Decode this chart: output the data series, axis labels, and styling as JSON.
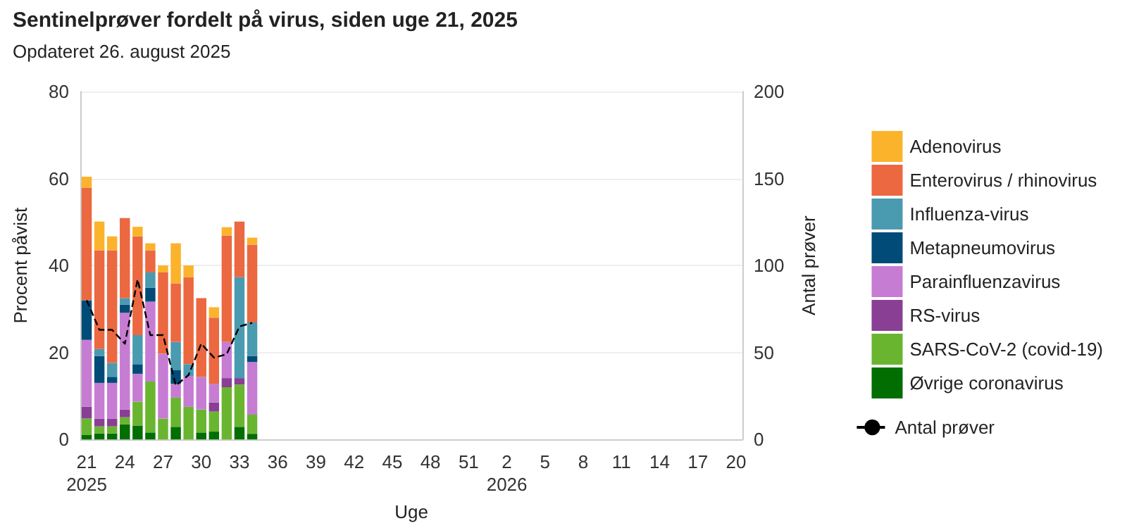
{
  "chart_data": {
    "type": "bar",
    "title": "Sentinelprøver fordelt på virus, siden uge 21, 2025",
    "subtitle": "Opdateret 26. august 2025",
    "xlabel": "Uge",
    "ylabel": "Procent påvist",
    "y2label": "Antal prøver",
    "categories": [
      "21\n2025",
      null,
      null,
      "24",
      null,
      null,
      "27",
      null,
      null,
      "30",
      null,
      null,
      "33",
      null,
      null,
      "36",
      null,
      null,
      "39",
      null,
      null,
      "42",
      null,
      null,
      "45",
      null,
      null,
      "48",
      null,
      null,
      "51",
      null,
      null,
      "2\n2026",
      null,
      null,
      "5",
      null,
      null,
      "8",
      null,
      null,
      "11",
      null,
      null,
      "14",
      null,
      null,
      "17",
      null,
      null,
      "20"
    ],
    "stacked": true,
    "ylim": [
      0,
      80
    ],
    "yticks": [
      0,
      20,
      40,
      60,
      80
    ],
    "y2lim": [
      0,
      200
    ],
    "y2ticks": [
      0,
      50,
      100,
      150,
      200
    ],
    "grid": "y",
    "legend": "right",
    "series": [
      {
        "name": "Øvrige coronavirus",
        "color": "#006e00",
        "values": [
          1.0,
          1.4,
          1.4,
          3.5,
          3.2,
          1.6,
          null,
          2.9,
          null,
          1.6,
          1.8,
          null,
          2.9,
          1.3,
          null,
          null,
          null,
          null,
          null,
          null,
          null,
          null,
          null,
          null,
          null,
          null,
          null,
          null,
          null,
          null,
          null,
          null,
          null,
          null,
          null,
          null,
          null,
          null,
          null,
          null,
          null,
          null,
          null,
          null,
          null,
          null,
          null,
          null,
          null,
          null,
          null,
          null
        ]
      },
      {
        "name": "SARS-CoV-2 (covid-19)",
        "color": "#6ab530",
        "values": [
          3.8,
          1.6,
          1.6,
          1.6,
          5.5,
          11.7,
          4.8,
          6.7,
          7.5,
          5.3,
          4.6,
          12.0,
          9.7,
          4.4,
          null,
          null,
          null,
          null,
          null,
          null,
          null,
          null,
          null,
          null,
          null,
          null,
          null,
          null,
          null,
          null,
          null,
          null,
          null,
          null,
          null,
          null,
          null,
          null,
          null,
          null,
          null,
          null,
          null,
          null,
          null,
          null,
          null,
          null,
          null,
          null,
          null,
          null
        ]
      },
      {
        "name": "RS-virus",
        "color": "#883f94",
        "values": [
          2.7,
          1.8,
          1.8,
          1.8,
          null,
          null,
          null,
          null,
          null,
          null,
          2.1,
          2.1,
          1.5,
          null,
          null,
          null,
          null,
          null,
          null,
          null,
          null,
          null,
          null,
          null,
          null,
          null,
          null,
          null,
          null,
          null,
          null,
          null,
          null,
          null,
          null,
          null,
          null,
          null,
          null,
          null,
          null,
          null,
          null,
          null,
          null,
          null,
          null,
          null,
          null,
          null,
          null,
          null
        ]
      },
      {
        "name": "Parainfluenzavirus",
        "color": "#c77cd4",
        "values": [
          15.4,
          8.2,
          8.2,
          22.2,
          6.4,
          18.4,
          14.9,
          3.2,
          7.1,
          7.5,
          4.3,
          8.3,
          null,
          12.1,
          null,
          null,
          null,
          null,
          null,
          null,
          null,
          null,
          null,
          null,
          null,
          null,
          null,
          null,
          null,
          null,
          null,
          null,
          null,
          null,
          null,
          null,
          null,
          null,
          null,
          null,
          null,
          null,
          null,
          null,
          null,
          null,
          null,
          null,
          null,
          null,
          null,
          null
        ]
      },
      {
        "name": "Metapneumovirus",
        "color": "#004b78",
        "values": [
          9.1,
          6.2,
          1.4,
          1.9,
          2.2,
          3.2,
          null,
          3.2,
          null,
          null,
          null,
          null,
          null,
          1.4,
          null,
          null,
          null,
          null,
          null,
          null,
          null,
          null,
          null,
          null,
          null,
          null,
          null,
          null,
          null,
          null,
          null,
          null,
          null,
          null,
          null,
          null,
          null,
          null,
          null,
          null,
          null,
          null,
          null,
          null,
          null,
          null,
          null,
          null,
          null,
          null,
          null,
          null
        ]
      },
      {
        "name": "Influenza-virus",
        "color": "#4a9ab0",
        "values": [
          null,
          1.6,
          3.2,
          1.5,
          6.7,
          3.5,
          null,
          6.4,
          2.7,
          null,
          null,
          null,
          23.2,
          7.7,
          null,
          null,
          null,
          null,
          null,
          null,
          null,
          null,
          null,
          null,
          null,
          null,
          null,
          null,
          null,
          null,
          null,
          null,
          null,
          null,
          null,
          null,
          null,
          null,
          null,
          null,
          null,
          null,
          null,
          null,
          null,
          null,
          null,
          null,
          null,
          null,
          null,
          null
        ]
      },
      {
        "name": "Enterovirus / rhinovirus",
        "color": "#eb6841",
        "values": [
          25.9,
          22.7,
          25.9,
          18.4,
          22.7,
          5.1,
          18.7,
          13.5,
          20.0,
          18.1,
          15.2,
          24.5,
          12.8,
          17.9,
          null,
          null,
          null,
          null,
          null,
          null,
          null,
          null,
          null,
          null,
          null,
          null,
          null,
          null,
          null,
          null,
          null,
          null,
          null,
          null,
          null,
          null,
          null,
          null,
          null,
          null,
          null,
          null,
          null,
          null,
          null,
          null,
          null,
          null,
          null,
          null,
          null,
          null
        ]
      },
      {
        "name": "Adenovirus",
        "color": "#fbb32c",
        "values": [
          2.5,
          6.6,
          3.2,
          null,
          2.2,
          1.6,
          1.6,
          9.2,
          2.7,
          null,
          2.4,
          1.9,
          null,
          1.6,
          null,
          null,
          null,
          null,
          null,
          null,
          null,
          null,
          null,
          null,
          null,
          null,
          null,
          null,
          null,
          null,
          null,
          null,
          null,
          null,
          null,
          null,
          null,
          null,
          null,
          null,
          null,
          null,
          null,
          null,
          null,
          null,
          null,
          null,
          null,
          null,
          null,
          null
        ]
      },
      {
        "name": "Antal prøver",
        "type": "line",
        "axis": "y2",
        "color": "#000000",
        "line_style": "dashed",
        "marker": "none",
        "values": [
          80,
          63,
          63,
          55,
          92,
          60,
          60,
          31,
          37,
          55,
          47,
          49,
          65,
          67,
          null,
          null,
          null,
          null,
          null,
          null,
          null,
          null,
          null,
          null,
          null,
          null,
          null,
          null,
          null,
          null,
          null,
          null,
          null,
          null,
          null,
          null,
          null,
          null,
          null,
          null,
          null,
          null,
          null,
          null,
          null,
          null,
          null,
          null,
          null,
          null,
          null,
          null
        ]
      }
    ]
  }
}
